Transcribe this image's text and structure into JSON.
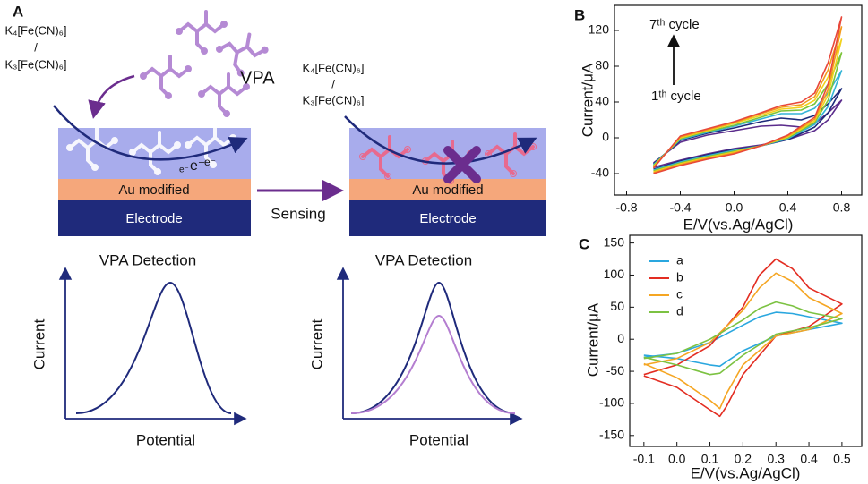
{
  "panel_a": {
    "label": "A",
    "left": {
      "reagent_top": "K₄[Fe(CN)₆]",
      "slash": "/",
      "reagent_bottom": "K₃[Fe(CN)₆]",
      "molecule": "VPA",
      "electrons": [
        "e⁻",
        "e⁻",
        "e⁻"
      ],
      "layer": "Au modified",
      "electrode": "Electrode",
      "plot_title": "VPA Detection",
      "y_axis": "Current",
      "x_axis": "Potential"
    },
    "arrow_label": "Sensing",
    "right": {
      "reagent_top": "K₄[Fe(CN)₆]",
      "slash": "/",
      "reagent_bottom": "K₃[Fe(CN)₆]",
      "layer": "Au modified",
      "electrode": "Electrode",
      "plot_title": "VPA Detection",
      "y_axis": "Current",
      "x_axis": "Potential"
    }
  },
  "chart_data": [
    {
      "type": "line",
      "label": "B",
      "xlabel": "E/V(vs.Ag/AgCl)",
      "ylabel": "Current/μA",
      "annotations": [
        "7ᵗʰ cycle",
        "1ᵗʰ cycle"
      ],
      "xlim": [
        -0.89,
        0.95
      ],
      "ylim": [
        -64,
        148
      ],
      "xticks": [
        -0.8,
        -0.4,
        {
          "value": 0,
          "label": "0.0"
        },
        0.4,
        0.8
      ],
      "yticks": [
        -40,
        0,
        40,
        80,
        120
      ],
      "x": [
        -0.6,
        -0.4,
        -0.2,
        0,
        0.2,
        0.35,
        0.5,
        0.6,
        0.7,
        0.8,
        0.7,
        0.6,
        0.4,
        0.2,
        0,
        -0.2,
        -0.4,
        -0.6
      ],
      "series": [
        {
          "color": "#5b2c8c",
          "values": [
            -28,
            -5,
            3,
            8,
            13,
            14,
            12,
            16,
            28,
            42,
            20,
            8,
            -2,
            -8,
            -12,
            -18,
            -25,
            -33
          ]
        },
        {
          "color": "#1c2a7a",
          "values": [
            -29,
            -3,
            5,
            11,
            18,
            22,
            20,
            25,
            38,
            55,
            28,
            12,
            -2,
            -9,
            -13,
            -19,
            -26,
            -35
          ]
        },
        {
          "color": "#33b4d6",
          "values": [
            -30,
            -2,
            6,
            13,
            21,
            27,
            27,
            33,
            50,
            75,
            35,
            15,
            -1,
            -9,
            -14,
            -20,
            -27,
            -36
          ]
        },
        {
          "color": "#7cc43a",
          "values": [
            -31,
            -1,
            7,
            14,
            23,
            30,
            31,
            38,
            60,
            95,
            42,
            17,
            0,
            -9,
            -15,
            -21,
            -28,
            -37
          ]
        },
        {
          "color": "#f2d21c",
          "values": [
            -32,
            0,
            8,
            16,
            25,
            32,
            34,
            42,
            68,
            110,
            48,
            19,
            1,
            -9,
            -16,
            -22,
            -29,
            -38
          ]
        },
        {
          "color": "#f39a1c",
          "values": [
            -33,
            1,
            9,
            17,
            27,
            34,
            37,
            46,
            76,
            124,
            54,
            21,
            2,
            -9,
            -17,
            -23,
            -30,
            -39
          ]
        },
        {
          "color": "#e8483a",
          "values": [
            -34,
            2,
            10,
            18,
            28,
            36,
            40,
            50,
            84,
            135,
            60,
            23,
            3,
            -9,
            -18,
            -24,
            -31,
            -40
          ]
        }
      ]
    },
    {
      "type": "line",
      "label": "C",
      "xlabel": "E/V(vs.Ag/AgCl)",
      "ylabel": "Current/μA",
      "legend": "upper left",
      "xlim": [
        -0.143,
        0.56
      ],
      "ylim": [
        -167,
        162
      ],
      "xticks": [
        -0.1,
        {
          "value": 0,
          "label": "0.0"
        },
        0.1,
        0.2,
        0.3,
        0.4,
        0.5
      ],
      "yticks": [
        -150,
        -100,
        -50,
        0,
        50,
        100,
        150
      ],
      "x": [
        -0.1,
        0,
        0.1,
        0.2,
        0.25,
        0.3,
        0.35,
        0.4,
        0.5,
        0.4,
        0.3,
        0.2,
        0.15,
        0.13,
        0.1,
        0,
        -0.1
      ],
      "series": [
        {
          "name": "a",
          "color": "#2aa7df",
          "values": [
            -28,
            -22,
            -5,
            22,
            35,
            42,
            40,
            35,
            25,
            15,
            5,
            -18,
            -35,
            -42,
            -40,
            -30,
            -25
          ]
        },
        {
          "name": "b",
          "color": "#e32d22",
          "values": [
            -55,
            -40,
            -10,
            50,
            100,
            125,
            110,
            80,
            55,
            20,
            5,
            -55,
            -105,
            -120,
            -110,
            -75,
            -57
          ]
        },
        {
          "name": "c",
          "color": "#f5a623",
          "values": [
            -40,
            -30,
            -5,
            45,
            80,
            103,
            90,
            65,
            40,
            15,
            5,
            -40,
            -85,
            -108,
            -95,
            -60,
            -38
          ]
        },
        {
          "name": "d",
          "color": "#7cc242",
          "values": [
            -30,
            -22,
            0,
            30,
            48,
            58,
            52,
            42,
            32,
            18,
            8,
            -25,
            -45,
            -53,
            -55,
            -40,
            -28
          ]
        }
      ]
    }
  ]
}
